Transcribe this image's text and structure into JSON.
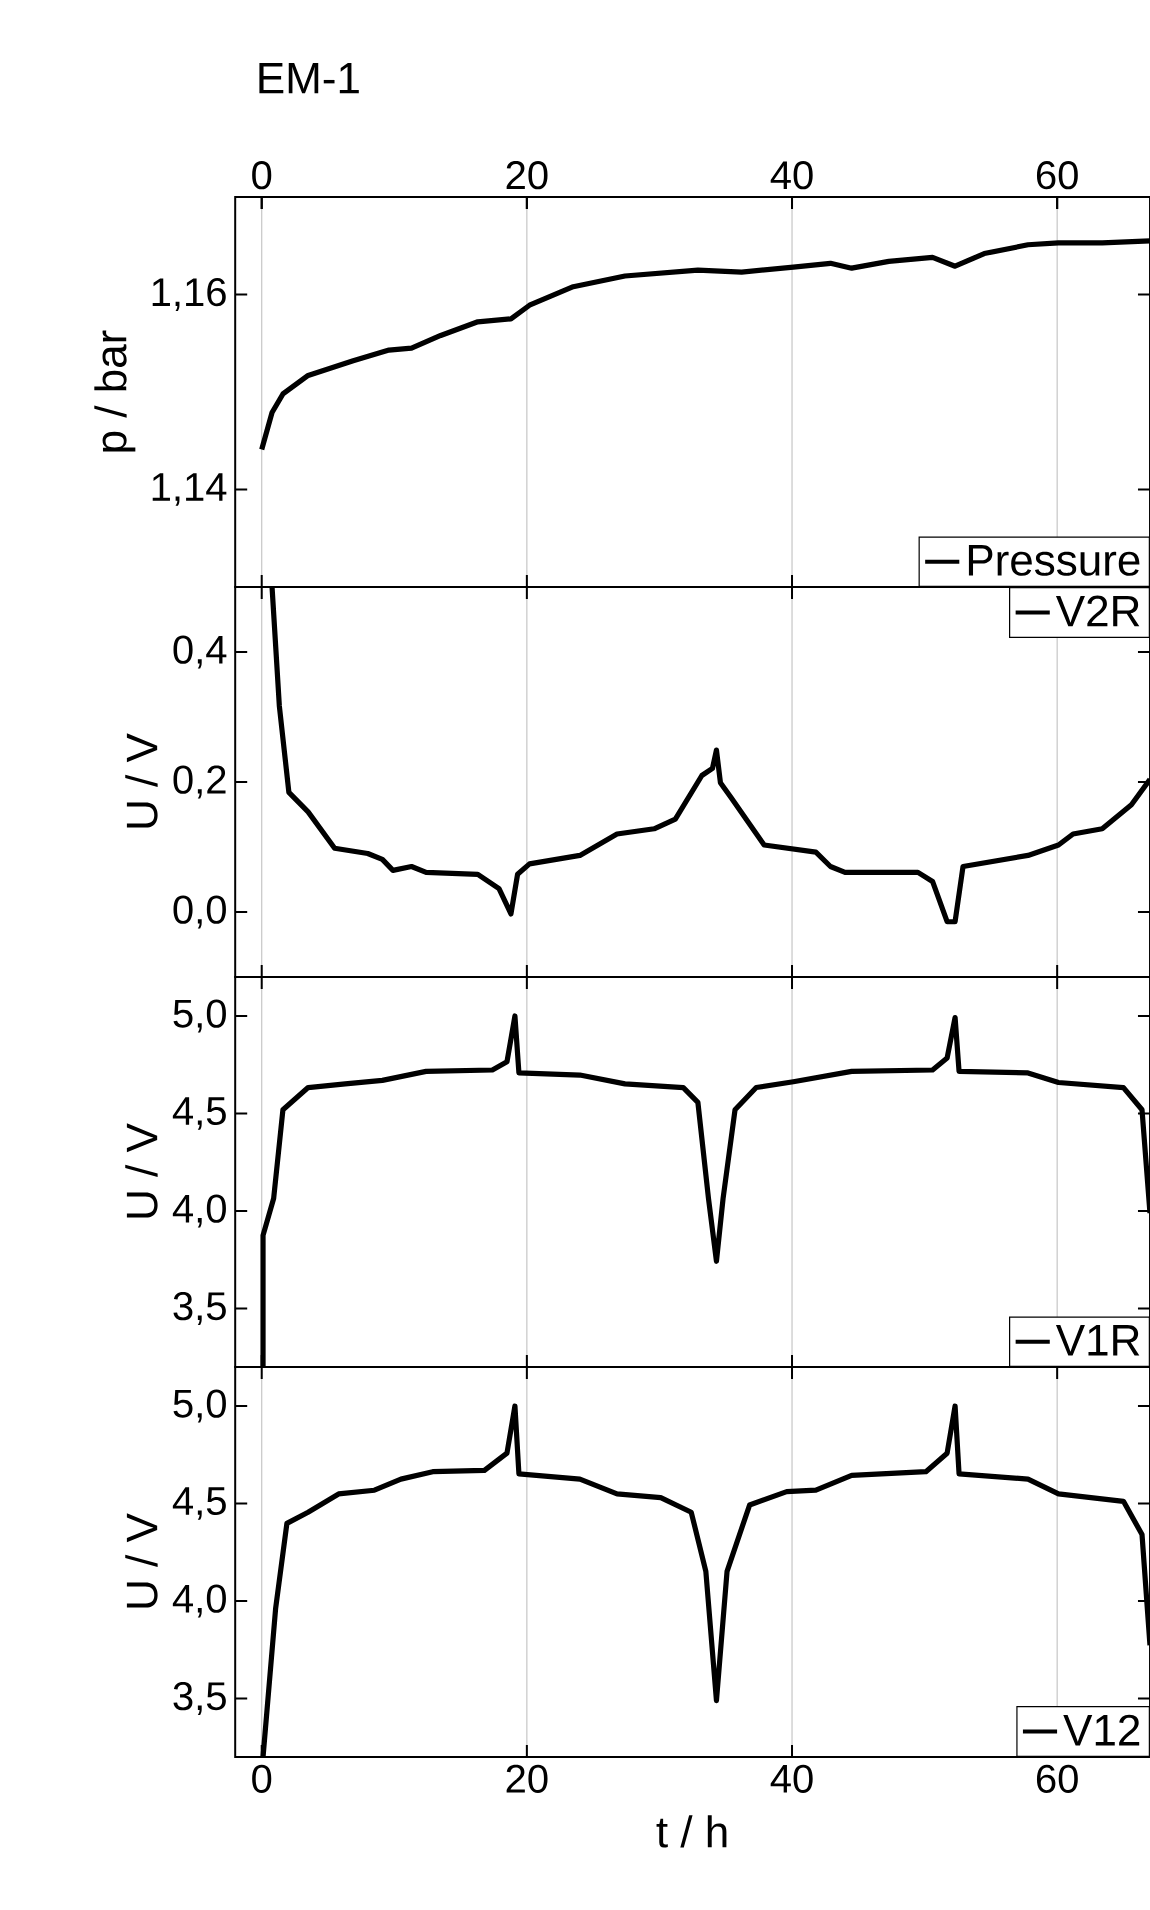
{
  "chart_data": [
    {
      "type": "line",
      "title": "EM-1",
      "ylabel": "p / bar",
      "xlim": [
        -2,
        67
      ],
      "xticks": [
        0,
        20,
        40,
        60
      ],
      "x2lim": [
        -2,
        67
      ],
      "x2ticks": [
        0,
        20,
        40,
        60
      ],
      "ylim": [
        1.13,
        1.17
      ],
      "yticks": [
        {
          "value": 1.14,
          "label": "1,14"
        },
        {
          "value": 1.16,
          "label": "1,16"
        }
      ],
      "grid": "x",
      "legend": "bottom right",
      "tick_labels": "y",
      "series": [
        {
          "name": "Pressure",
          "color": "#000000",
          "x": [
            0,
            0.78,
            1.6,
            3.5,
            6.9,
            9.6,
            11.3,
            13.5,
            16.3,
            18.8,
            20.2,
            23.5,
            27.4,
            32.9,
            36.2,
            40.1,
            42.9,
            44.5,
            47.3,
            50.6,
            52.3,
            54.5,
            57.8,
            60.1,
            63.4,
            67
          ],
          "values": [
            1.1441,
            1.1479,
            1.1498,
            1.1517,
            1.1532,
            1.1543,
            1.1545,
            1.1558,
            1.1572,
            1.1575,
            1.1589,
            1.1608,
            1.1619,
            1.1625,
            1.1623,
            1.1628,
            1.1632,
            1.1627,
            1.1634,
            1.1638,
            1.1629,
            1.1642,
            1.1651,
            1.1653,
            1.1653,
            1.1655
          ]
        }
      ]
    },
    {
      "type": "line",
      "ylabel": "U / V",
      "xlim": [
        -2,
        67
      ],
      "xticks": [
        0,
        20,
        40,
        60
      ],
      "ylim": [
        -0.1,
        0.5
      ],
      "yticks": [
        {
          "value": 0,
          "label": "0,0"
        },
        {
          "value": 0.2,
          "label": "0,2"
        },
        {
          "value": 0.4,
          "label": "0,4"
        }
      ],
      "grid": "x",
      "legend": "top right",
      "tick_labels": "y",
      "series": [
        {
          "name": "V2R",
          "color": "#000000",
          "x": [
            0.78,
            1.33,
            2.05,
            3.5,
            5.5,
            8,
            9.1,
            9.9,
            11.3,
            12.4,
            16.3,
            17.9,
            18.8,
            19.3,
            20.2,
            24,
            26.8,
            29.6,
            31.2,
            33.2,
            34,
            34.3,
            34.6,
            35.4,
            37.9,
            41.8,
            42.9,
            44,
            49.5,
            50.6,
            51.7,
            52.3,
            52.9,
            57.8,
            60.1,
            61.2,
            63.4,
            65.6,
            67
          ],
          "values": [
            0.5,
            0.317,
            0.184,
            0.154,
            0.098,
            0.09,
            0.081,
            0.064,
            0.07,
            0.061,
            0.058,
            0.036,
            -0.003,
            0.058,
            0.074,
            0.087,
            0.12,
            0.128,
            0.143,
            0.21,
            0.221,
            0.249,
            0.199,
            0.176,
            0.103,
            0.092,
            0.07,
            0.061,
            0.061,
            0.047,
            -0.015,
            -0.015,
            0.07,
            0.087,
            0.103,
            0.12,
            0.128,
            0.165,
            0.204
          ]
        }
      ]
    },
    {
      "type": "line",
      "ylabel": "U / V",
      "xlim": [
        -2,
        67
      ],
      "xticks": [
        0,
        20,
        40,
        60
      ],
      "ylim": [
        3.2,
        5.2
      ],
      "yticks": [
        {
          "value": 3.5,
          "label": "3,5"
        },
        {
          "value": 4,
          "label": "4,0"
        },
        {
          "value": 4.5,
          "label": "4,5"
        },
        {
          "value": 5,
          "label": "5,0"
        }
      ],
      "grid": "x",
      "legend": "bottom right",
      "tick_labels": "y",
      "series": [
        {
          "name": "V1R",
          "color": "#000000",
          "x": [
            0.1,
            0.1,
            0.9,
            1.6,
            3.5,
            6.3,
            9.1,
            12.4,
            17.4,
            18.5,
            19.1,
            19.4,
            24,
            27.4,
            31.8,
            32.9,
            33.7,
            34.3,
            34.8,
            35.7,
            37.3,
            40.1,
            44.5,
            50.6,
            51.7,
            52.3,
            52.6,
            57.8,
            60.1,
            65,
            66.4,
            67
          ],
          "values": [
            3.2,
            3.875,
            4.064,
            4.519,
            4.633,
            4.652,
            4.67,
            4.716,
            4.723,
            4.765,
            5.0,
            4.708,
            4.697,
            4.652,
            4.633,
            4.557,
            4.064,
            3.742,
            4.064,
            4.519,
            4.633,
            4.663,
            4.716,
            4.723,
            4.784,
            4.992,
            4.716,
            4.708,
            4.659,
            4.633,
            4.519,
            3.989
          ]
        }
      ]
    },
    {
      "type": "line",
      "ylabel": "U / V",
      "xlabel": "t / h",
      "xlim": [
        -2,
        67
      ],
      "xticks": [
        0,
        20,
        40,
        60
      ],
      "ylim": [
        3.2,
        5.2
      ],
      "yticks": [
        {
          "value": 3.5,
          "label": "3,5"
        },
        {
          "value": 4,
          "label": "4,0"
        },
        {
          "value": 4.5,
          "label": "4,5"
        },
        {
          "value": 5,
          "label": "5,0"
        }
      ],
      "grid": "x",
      "legend": "bottom right",
      "series": [
        {
          "name": "V12",
          "color": "#000000",
          "x": [
            0.1,
            1.05,
            1.9,
            3.5,
            5.8,
            8.5,
            10.5,
            12.9,
            16.8,
            18.5,
            19.1,
            19.4,
            24,
            26.8,
            30.1,
            32.4,
            33.5,
            34.3,
            35.1,
            36.8,
            39.6,
            41.8,
            44.5,
            50.1,
            51.7,
            52.3,
            52.6,
            57.8,
            60.1,
            65,
            66.4,
            67
          ],
          "values": [
            3.2,
            3.962,
            4.398,
            4.455,
            4.549,
            4.568,
            4.625,
            4.663,
            4.67,
            4.758,
            5.0,
            4.652,
            4.625,
            4.549,
            4.53,
            4.455,
            4.152,
            3.489,
            4.152,
            4.492,
            4.561,
            4.568,
            4.644,
            4.663,
            4.758,
            5.0,
            4.652,
            4.625,
            4.549,
            4.511,
            4.341,
            3.773
          ]
        }
      ]
    }
  ]
}
